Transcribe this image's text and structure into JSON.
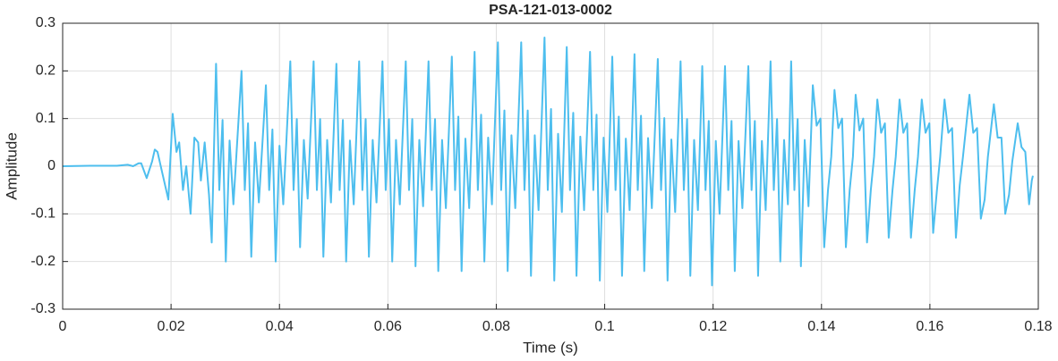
{
  "chart_data": {
    "type": "line",
    "title": "PSA-121-013-0002",
    "xlabel": "Time (s)",
    "ylabel": "Amplitude",
    "xlim": [
      0,
      0.18
    ],
    "ylim": [
      -0.3,
      0.3
    ],
    "xticks": [
      0,
      0.02,
      0.04,
      0.06,
      0.08,
      0.1,
      0.12,
      0.14,
      0.16,
      0.18
    ],
    "yticks": [
      -0.3,
      -0.2,
      -0.1,
      0,
      0.1,
      0.2,
      0.3
    ],
    "grid": true,
    "x": [
      0,
      0.005,
      0.01,
      0.012,
      0.013,
      0.014,
      0.0145,
      0.0155,
      0.0165,
      0.017,
      0.0175,
      0.0185,
      0.0195,
      0.0203,
      0.021,
      0.0215,
      0.0222,
      0.0228,
      0.0236,
      0.0243,
      0.025,
      0.0255,
      0.0262,
      0.027,
      0.0275,
      0.0283,
      0.0289,
      0.0295,
      0.0301,
      0.0308,
      0.0315,
      0.033,
      0.0336,
      0.0342,
      0.0348,
      0.0355,
      0.0362,
      0.0375,
      0.0381,
      0.0387,
      0.0393,
      0.04,
      0.0407,
      0.042,
      0.0426,
      0.0432,
      0.0438,
      0.0445,
      0.0452,
      0.0463,
      0.0469,
      0.0475,
      0.0481,
      0.0488,
      0.0495,
      0.0505,
      0.0511,
      0.0517,
      0.0523,
      0.053,
      0.0537,
      0.0547,
      0.0553,
      0.0559,
      0.0565,
      0.0572,
      0.0579,
      0.059,
      0.0596,
      0.0602,
      0.0608,
      0.0615,
      0.0622,
      0.0633,
      0.0639,
      0.0645,
      0.0651,
      0.0658,
      0.0665,
      0.0675,
      0.0681,
      0.0687,
      0.0693,
      0.07,
      0.0707,
      0.0718,
      0.0724,
      0.073,
      0.0736,
      0.0743,
      0.075,
      0.076,
      0.0766,
      0.0772,
      0.0778,
      0.0785,
      0.0792,
      0.0803,
      0.0809,
      0.0815,
      0.0821,
      0.0828,
      0.0835,
      0.0846,
      0.0852,
      0.0858,
      0.0864,
      0.0871,
      0.0878,
      0.0889,
      0.0895,
      0.0901,
      0.0907,
      0.0914,
      0.0921,
      0.093,
      0.0936,
      0.0942,
      0.0948,
      0.0955,
      0.0962,
      0.0973,
      0.0979,
      0.0985,
      0.0991,
      0.0998,
      0.1005,
      0.1014,
      0.102,
      0.1026,
      0.1032,
      0.1039,
      0.1046,
      0.1055,
      0.1061,
      0.1067,
      0.1073,
      0.108,
      0.1087,
      0.1098,
      0.1104,
      0.111,
      0.1116,
      0.1123,
      0.113,
      0.114,
      0.1146,
      0.1152,
      0.1158,
      0.1165,
      0.1172,
      0.118,
      0.1186,
      0.1192,
      0.1198,
      0.1205,
      0.1212,
      0.1222,
      0.1228,
      0.1234,
      0.124,
      0.1247,
      0.1254,
      0.1265,
      0.1271,
      0.1277,
      0.1283,
      0.129,
      0.1297,
      0.1306,
      0.1312,
      0.1318,
      0.1324,
      0.1331,
      0.1338,
      0.1344,
      0.135,
      0.1356,
      0.1362,
      0.1369,
      0.1376,
      0.1384,
      0.1391,
      0.1398,
      0.1405,
      0.1412,
      0.1418,
      0.1424,
      0.1431,
      0.1438,
      0.1445,
      0.1452,
      0.1458,
      0.1463,
      0.147,
      0.1477,
      0.1484,
      0.1491,
      0.1497,
      0.1503,
      0.151,
      0.1517,
      0.1524,
      0.1531,
      0.1537,
      0.1544,
      0.1551,
      0.1558,
      0.1565,
      0.1572,
      0.1578,
      0.1585,
      0.1592,
      0.1599,
      0.1606,
      0.1613,
      0.1619,
      0.1627,
      0.1634,
      0.1641,
      0.1648,
      0.1655,
      0.1661,
      0.1673,
      0.168,
      0.1687,
      0.1694,
      0.1701,
      0.1707,
      0.1718,
      0.1725,
      0.1732,
      0.1739,
      0.1746,
      0.1752,
      0.1762,
      0.1769,
      0.1776,
      0.1783,
      0.1788,
      0.179
    ],
    "series": [
      {
        "name": "Amplitude",
        "color": "#4dbeee",
        "values": [
          0,
          0.001,
          0.001,
          0.003,
          0,
          0.006,
          0.006,
          -0.025,
          0.01,
          0.035,
          0.03,
          -0.02,
          -0.07,
          0.11,
          0.03,
          0.05,
          -0.05,
          0,
          -0.1,
          0.06,
          0.05,
          -0.03,
          0.05,
          -0.06,
          -0.16,
          0.215,
          -0.05,
          0.097,
          -0.2,
          0.054,
          -0.08,
          0.2,
          -0.05,
          0.09,
          -0.19,
          0.05,
          -0.076,
          0.17,
          -0.05,
          0.077,
          -0.2,
          0.043,
          -0.08,
          0.22,
          -0.05,
          0.099,
          -0.17,
          0.055,
          -0.068,
          0.22,
          -0.05,
          0.099,
          -0.19,
          0.055,
          -0.076,
          0.215,
          -0.05,
          0.097,
          -0.2,
          0.054,
          -0.08,
          0.22,
          -0.05,
          0.099,
          -0.19,
          0.055,
          -0.076,
          0.22,
          -0.05,
          0.099,
          -0.2,
          0.055,
          -0.08,
          0.22,
          -0.05,
          0.099,
          -0.21,
          0.055,
          -0.084,
          0.22,
          -0.05,
          0.099,
          -0.22,
          0.055,
          -0.088,
          0.23,
          -0.05,
          0.104,
          -0.22,
          0.058,
          -0.088,
          0.24,
          -0.05,
          0.108,
          -0.2,
          0.06,
          -0.08,
          0.26,
          -0.05,
          0.117,
          -0.22,
          0.065,
          -0.088,
          0.26,
          -0.05,
          0.117,
          -0.23,
          0.065,
          -0.092,
          0.27,
          -0.05,
          0.12,
          -0.24,
          0.068,
          -0.096,
          0.25,
          -0.05,
          0.112,
          -0.23,
          0.062,
          -0.092,
          0.24,
          -0.05,
          0.108,
          -0.24,
          0.06,
          -0.096,
          0.23,
          -0.05,
          0.104,
          -0.23,
          0.058,
          -0.092,
          0.235,
          -0.05,
          0.106,
          -0.22,
          0.059,
          -0.088,
          0.225,
          -0.05,
          0.101,
          -0.24,
          0.056,
          -0.096,
          0.22,
          -0.05,
          0.099,
          -0.23,
          0.055,
          -0.092,
          0.21,
          -0.05,
          0.095,
          -0.25,
          0.053,
          -0.1,
          0.21,
          -0.05,
          0.095,
          -0.22,
          0.053,
          -0.088,
          0.21,
          -0.05,
          0.095,
          -0.23,
          0.053,
          -0.092,
          0.22,
          -0.05,
          0.099,
          -0.2,
          0.055,
          -0.08,
          0.22,
          -0.05,
          0.099,
          -0.21,
          0.055,
          -0.084,
          0.17,
          0.085,
          0.1,
          -0.17,
          -0.05,
          0.02,
          0.16,
          0.08,
          0.1,
          -0.17,
          -0.05,
          0.02,
          0.15,
          0.075,
          0.1,
          -0.16,
          -0.05,
          0.02,
          0.14,
          0.07,
          0.09,
          -0.15,
          -0.05,
          0.02,
          0.14,
          0.07,
          0.09,
          -0.15,
          -0.05,
          0.02,
          0.14,
          0.07,
          0.09,
          -0.14,
          -0.05,
          0.02,
          0.14,
          0.07,
          0.08,
          -0.15,
          -0.04,
          0.02,
          0.15,
          0.07,
          0.08,
          -0.11,
          -0.07,
          0.02,
          0.13,
          0.06,
          0.06,
          -0.1,
          -0.06,
          0.01,
          0.09,
          0.04,
          0.03,
          -0.08,
          -0.03,
          -0.02
        ]
      }
    ]
  }
}
